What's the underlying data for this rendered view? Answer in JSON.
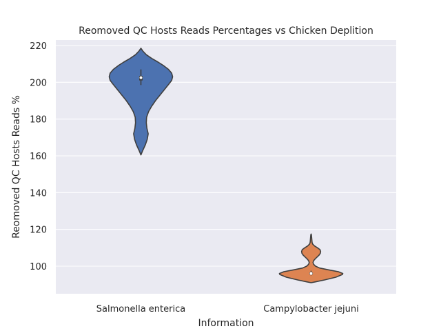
{
  "chart_data": {
    "type": "violin",
    "title": "Reomoved QC Hosts Reads Percentages vs Chicken Deplition",
    "xlabel": "Information",
    "ylabel": "Reomoved QC Hosts Reads %",
    "categories": [
      "Salmonella enterica",
      "Campylobacter jejuni"
    ],
    "ylim": [
      85,
      223
    ],
    "yticks": [
      100,
      120,
      140,
      160,
      180,
      200,
      220
    ],
    "grid": true,
    "colors": [
      "#4C72B0",
      "#DD8452"
    ],
    "background": "#EAEAF2",
    "violins": [
      {
        "category": "Salmonella enterica",
        "min": 160.5,
        "max": 218.5,
        "q1": 201.0,
        "median": 202.5,
        "q3": 203.5,
        "whisker_low": 198.5,
        "whisker_high": 207.0,
        "density": [
          [
            160.5,
            0.0
          ],
          [
            163,
            0.06
          ],
          [
            166,
            0.14
          ],
          [
            169,
            0.2
          ],
          [
            172,
            0.23
          ],
          [
            175,
            0.19
          ],
          [
            178,
            0.17
          ],
          [
            181,
            0.18
          ],
          [
            184,
            0.24
          ],
          [
            187,
            0.34
          ],
          [
            190,
            0.46
          ],
          [
            193,
            0.6
          ],
          [
            196,
            0.74
          ],
          [
            199,
            0.88
          ],
          [
            201,
            0.97
          ],
          [
            203,
            1.0
          ],
          [
            205,
            0.97
          ],
          [
            207,
            0.87
          ],
          [
            209,
            0.72
          ],
          [
            211,
            0.54
          ],
          [
            213,
            0.34
          ],
          [
            215,
            0.17
          ],
          [
            217,
            0.06
          ],
          [
            218.5,
            0.0
          ]
        ]
      },
      {
        "category": "Campylobacter jejuni",
        "min": 91,
        "max": 117.5,
        "q1": 95.5,
        "median": 96.0,
        "q3": 96.5,
        "whisker_low": 95.0,
        "whisker_high": 97.5,
        "density": [
          [
            91,
            0.0
          ],
          [
            91.5,
            0.14
          ],
          [
            92.5,
            0.42
          ],
          [
            94,
            0.78
          ],
          [
            95.5,
            0.99
          ],
          [
            96,
            1.0
          ],
          [
            97,
            0.86
          ],
          [
            98,
            0.55
          ],
          [
            99,
            0.27
          ],
          [
            100,
            0.14
          ],
          [
            101,
            0.08
          ],
          [
            102,
            0.06
          ],
          [
            103,
            0.08
          ],
          [
            104,
            0.13
          ],
          [
            105,
            0.19
          ],
          [
            106,
            0.25
          ],
          [
            107,
            0.29
          ],
          [
            108,
            0.3
          ],
          [
            109,
            0.28
          ],
          [
            110,
            0.2
          ],
          [
            111,
            0.11
          ],
          [
            112,
            0.05
          ],
          [
            113,
            0.03
          ],
          [
            114,
            0.025
          ],
          [
            115,
            0.02
          ],
          [
            116,
            0.015
          ],
          [
            117,
            0.01
          ],
          [
            117.5,
            0.0
          ]
        ]
      }
    ]
  }
}
